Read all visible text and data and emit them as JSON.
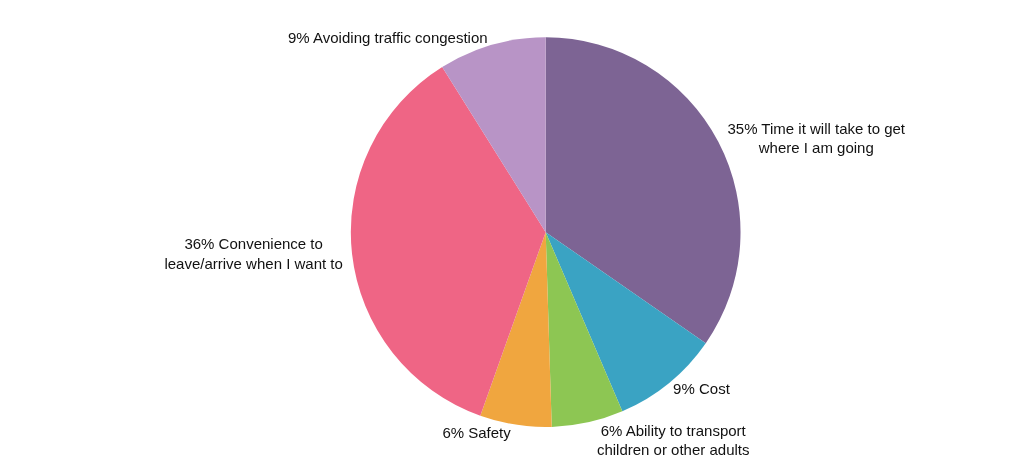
{
  "chart_data": {
    "type": "pie",
    "categories": [
      "35% Time it will take to get where I am going",
      "9% Cost",
      "6% Ability to transport children or other adults",
      "6% Safety",
      "36% Convenience to leave/arrive when I want to",
      "9% Avoiding traffic congestion"
    ],
    "values": [
      35,
      9,
      6,
      6,
      36,
      9
    ],
    "colors": [
      "#7d6494",
      "#3aa3c3",
      "#8dc653",
      "#f0a63f",
      "#ef6585",
      "#b894c6"
    ],
    "legend": false
  }
}
